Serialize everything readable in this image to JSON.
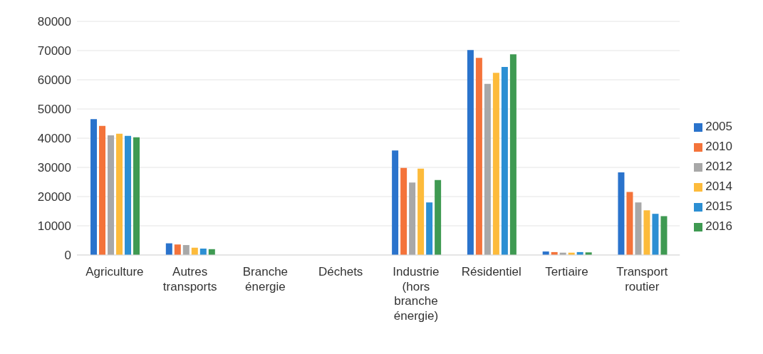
{
  "chart_data": {
    "type": "bar",
    "categories": [
      "Agriculture",
      "Autres transports",
      "Branche énergie",
      "Déchets",
      "Industrie (hors branche énergie)",
      "Résidentiel",
      "Tertiaire",
      "Transport routier"
    ],
    "series": [
      {
        "name": "2005",
        "color": "#2a73cc",
        "values": [
          46500,
          4000,
          0,
          0,
          35800,
          70200,
          1200,
          28300
        ]
      },
      {
        "name": "2010",
        "color": "#f4733a",
        "values": [
          44200,
          3600,
          0,
          0,
          29800,
          67500,
          1000,
          21600
        ]
      },
      {
        "name": "2012",
        "color": "#a8a8a8",
        "values": [
          41000,
          3400,
          0,
          0,
          24800,
          58600,
          800,
          18000
        ]
      },
      {
        "name": "2014",
        "color": "#fdbb3b",
        "values": [
          41500,
          2500,
          0,
          0,
          29600,
          62400,
          800,
          15300
        ]
      },
      {
        "name": "2015",
        "color": "#2c8fd3",
        "values": [
          40800,
          2200,
          0,
          0,
          18000,
          64400,
          1000,
          14100
        ]
      },
      {
        "name": "2016",
        "color": "#3f9a52",
        "values": [
          40300,
          2000,
          0,
          0,
          25700,
          68700,
          900,
          13300
        ]
      }
    ],
    "ylim": [
      0,
      80000
    ],
    "yticks": [
      0,
      10000,
      20000,
      30000,
      40000,
      50000,
      60000,
      70000,
      80000
    ],
    "grid": "y",
    "legend": "right"
  }
}
